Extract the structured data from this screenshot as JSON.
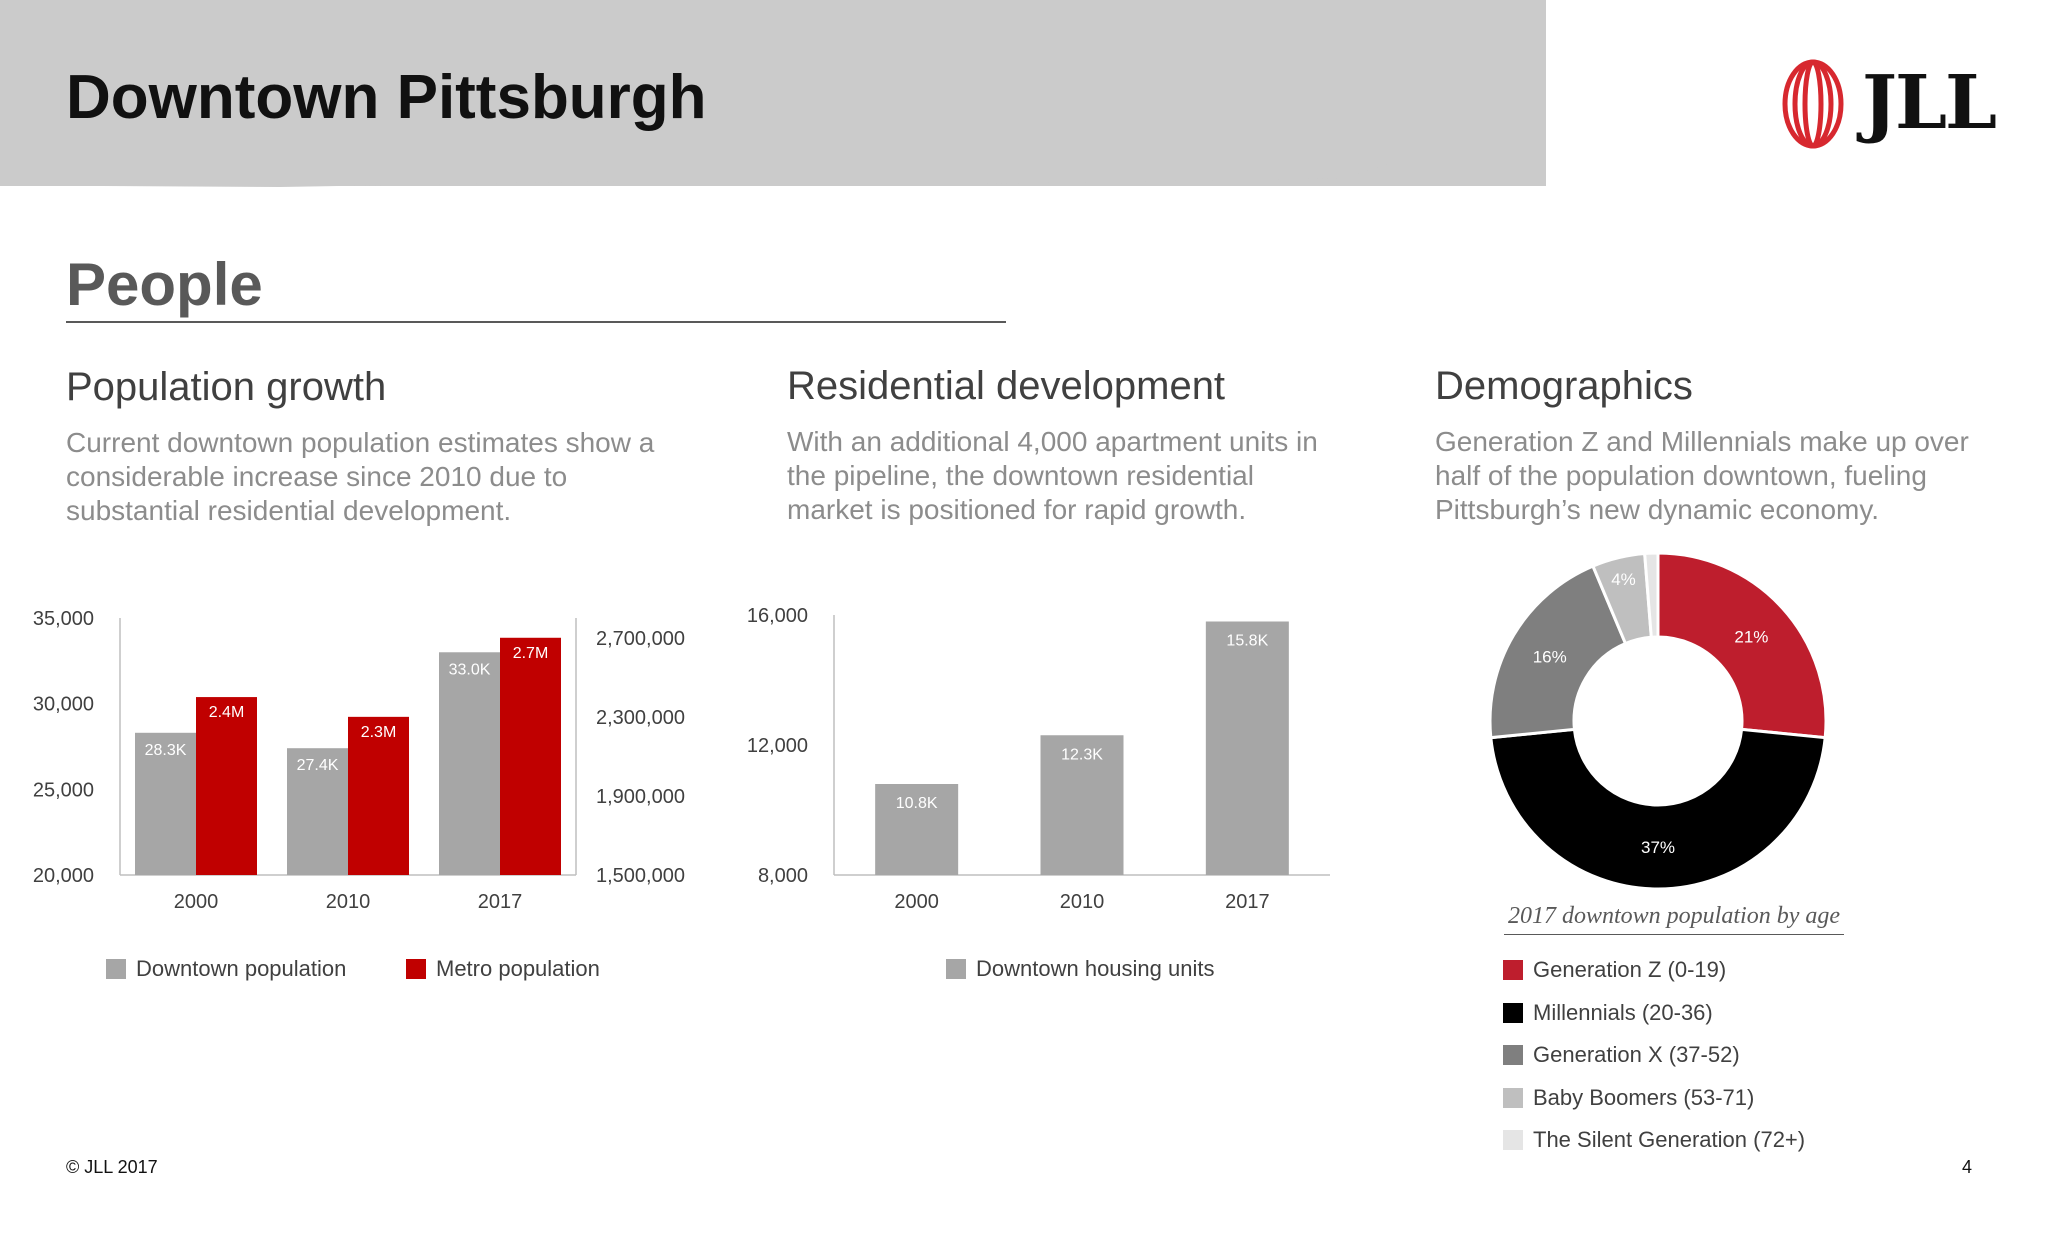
{
  "header": {
    "title": "Downtown Pittsburgh",
    "logo_text": "JLL"
  },
  "section": {
    "title": "People"
  },
  "columns": [
    {
      "heading": "Population growth",
      "body": "Current downtown population estimates show a considerable increase since 2010 due to substantial residential development."
    },
    {
      "heading": "Residential development",
      "body": "With an additional 4,000 apartment units in the pipeline, the downtown residential market is positioned for rapid growth."
    },
    {
      "heading": "Demographics",
      "body": "Generation Z and Millennials make up over half of the population downtown, fueling Pittsburgh’s new dynamic economy."
    }
  ],
  "chart_data": [
    {
      "type": "bar",
      "categories": [
        "2000",
        "2010",
        "2017"
      ],
      "series": [
        {
          "name": "Downtown population",
          "values": [
            28300,
            27400,
            33000
          ],
          "labels": [
            "28.3K",
            "27.4K",
            "33.0K"
          ],
          "axis": "left",
          "color": "#a6a6a6"
        },
        {
          "name": "Metro population",
          "values": [
            2400000,
            2300000,
            2700000
          ],
          "labels": [
            "2.4M",
            "2.3M",
            "2.7M"
          ],
          "axis": "right",
          "color": "#c00000"
        }
      ],
      "ylim": [
        20000,
        35000
      ],
      "y_ticks": [
        "20,000",
        "25,000",
        "30,000",
        "35,000"
      ],
      "y2lim": [
        1500000,
        2800000
      ],
      "y2_ticks": [
        "1,500,000",
        "1,900,000",
        "2,300,000",
        "2,700,000"
      ],
      "y2_tick_values": [
        1500000,
        1900000,
        2300000,
        2700000
      ],
      "legend": "bottom"
    },
    {
      "type": "bar",
      "categories": [
        "2000",
        "2010",
        "2017"
      ],
      "series": [
        {
          "name": "Downtown housing units",
          "values": [
            10800,
            12300,
            15800
          ],
          "labels": [
            "10.8K",
            "12.3K",
            "15.8K"
          ],
          "color": "#a6a6a6"
        }
      ],
      "ylim": [
        8000,
        16000
      ],
      "y_ticks": [
        "8,000",
        "12,000",
        "16,000"
      ],
      "legend": "bottom"
    },
    {
      "type": "pie",
      "title": "2017 downtown population by age",
      "labels": [
        "Generation Z (0-19)",
        "Millennials (20-36)",
        "Generation X (37-52)",
        "Baby Boomers (53-71)",
        "The Silent Generation (72+)"
      ],
      "values": [
        21,
        37,
        16,
        4,
        1
      ],
      "data_labels": [
        "21%",
        "37%",
        "16%",
        "4%",
        ""
      ],
      "colors": [
        "#be1e2d",
        "#000000",
        "#7f7f7f",
        "#bfbfbf",
        "#e5e5e5"
      ],
      "legend": "bottom"
    }
  ],
  "footer": {
    "copyright": "© JLL 2017",
    "page_number": "4"
  }
}
